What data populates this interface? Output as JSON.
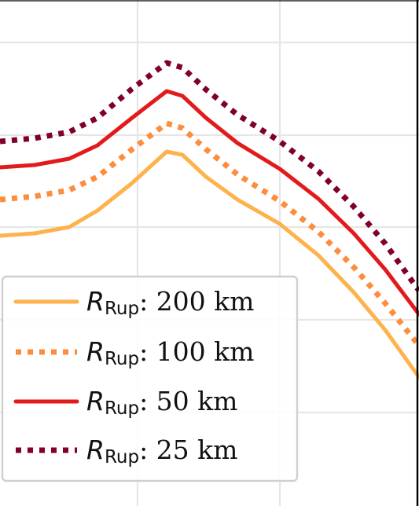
{
  "chart_data": {
    "type": "line",
    "title": "",
    "xlabel": "",
    "ylabel": "",
    "grid": true,
    "legend_position": "lower-left",
    "x": [
      0,
      1,
      2,
      3,
      4,
      5,
      6,
      7,
      8,
      9,
      10,
      11,
      12,
      13
    ],
    "series": [
      {
        "name_symbol": "R",
        "name_subscript": "Rup",
        "name_value": ": 200 km",
        "color": "#feb24c",
        "style": "solid",
        "values": [
          0.3,
          0.297,
          0.289,
          0.268,
          0.233,
          0.193,
          0.197,
          0.225,
          0.254,
          0.285,
          0.325,
          0.372,
          0.42,
          0.48
        ]
      },
      {
        "name_symbol": "R",
        "name_subscript": "Rup",
        "name_value": ": 100 km",
        "color": "#fd8d3c",
        "style": "dotted",
        "values": [
          0.254,
          0.25,
          0.242,
          0.225,
          0.19,
          0.157,
          0.163,
          0.19,
          0.222,
          0.256,
          0.295,
          0.34,
          0.386,
          0.44
        ]
      },
      {
        "name_symbol": "R",
        "name_subscript": "Rup",
        "name_value": ": 50 km",
        "color": "#e31a1c",
        "style": "solid",
        "values": [
          0.213,
          0.21,
          0.202,
          0.185,
          0.15,
          0.116,
          0.122,
          0.15,
          0.182,
          0.215,
          0.253,
          0.297,
          0.343,
          0.4
        ]
      },
      {
        "name_symbol": "R",
        "name_subscript": "Rup",
        "name_value": ": 25 km",
        "color": "#800026",
        "style": "dotted",
        "values": [
          0.18,
          0.176,
          0.168,
          0.15,
          0.113,
          0.08,
          0.086,
          0.114,
          0.146,
          0.18,
          0.218,
          0.263,
          0.31,
          0.37
        ]
      }
    ]
  }
}
